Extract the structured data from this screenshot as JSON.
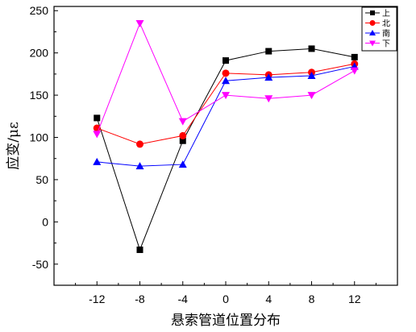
{
  "chart_data": {
    "type": "line",
    "xlabel": "悬索管道位置分布",
    "ylabel": "应变/με",
    "x": [
      -12,
      -8,
      -4,
      0,
      4,
      8,
      12
    ],
    "x_ticks": [
      "-12",
      "-8",
      "-4",
      "0",
      "4",
      "8",
      "12"
    ],
    "y_ticks": [
      "-50",
      "0",
      "50",
      "100",
      "150",
      "200",
      "250"
    ],
    "xlim": [
      -16,
      16
    ],
    "ylim": [
      -75,
      255
    ],
    "legend_position": "top-right",
    "series": [
      {
        "name": "上",
        "color": "#000000",
        "marker": "square",
        "values": [
          123,
          -33,
          96,
          191,
          202,
          205,
          195
        ]
      },
      {
        "name": "北",
        "color": "#ff0000",
        "marker": "circle",
        "values": [
          111,
          92,
          102,
          176,
          174,
          177,
          187
        ]
      },
      {
        "name": "南",
        "color": "#0000ff",
        "marker": "triangle-up",
        "values": [
          71,
          66,
          68,
          167,
          171,
          173,
          184
        ]
      },
      {
        "name": "下",
        "color": "#ff00ff",
        "marker": "triangle-down",
        "values": [
          104,
          235,
          119,
          150,
          146,
          150,
          179
        ]
      }
    ]
  }
}
